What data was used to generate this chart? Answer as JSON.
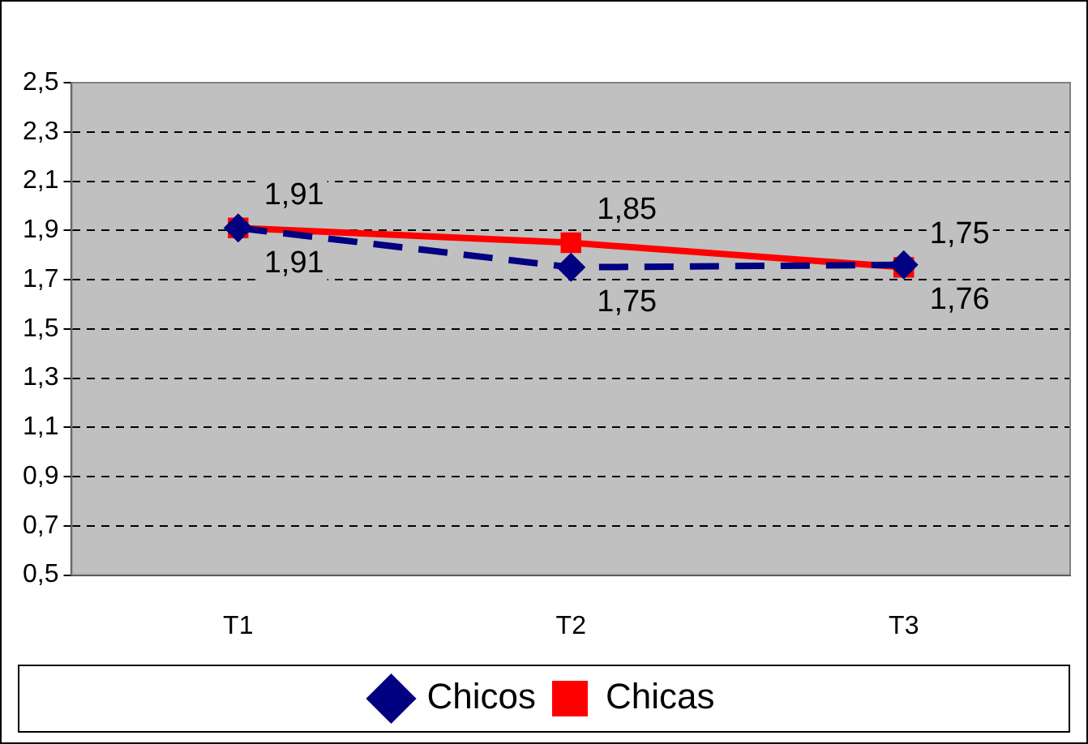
{
  "chart_data": {
    "type": "line",
    "categories": [
      "T1",
      "T2",
      "T3"
    ],
    "series": [
      {
        "name": "Chicos",
        "color": "#000080",
        "values": [
          1.91,
          1.75,
          1.76
        ],
        "value_labels": [
          "1,91",
          "1,75",
          "1,76"
        ],
        "marker": "diamond",
        "line_style": "dashed"
      },
      {
        "name": "Chicas",
        "color": "#ff0000",
        "values": [
          1.91,
          1.85,
          1.75
        ],
        "value_labels": [
          "1,91",
          "1,85",
          "1,75"
        ],
        "marker": "square",
        "line_style": "solid"
      }
    ],
    "ylim": [
      0.5,
      2.5
    ],
    "yticks": [
      {
        "value": 0.5,
        "label": "0,5"
      },
      {
        "value": 0.7,
        "label": "0,7"
      },
      {
        "value": 0.9,
        "label": "0,9"
      },
      {
        "value": 1.1,
        "label": "1,1"
      },
      {
        "value": 1.3,
        "label": "1,3"
      },
      {
        "value": 1.5,
        "label": "1,5"
      },
      {
        "value": 1.7,
        "label": "1,7"
      },
      {
        "value": 1.9,
        "label": "1,9"
      },
      {
        "value": 2.1,
        "label": "2,1"
      },
      {
        "value": 2.3,
        "label": "2,3"
      },
      {
        "value": 2.5,
        "label": "2,5"
      }
    ],
    "grid": "y",
    "legend": "bottom"
  }
}
